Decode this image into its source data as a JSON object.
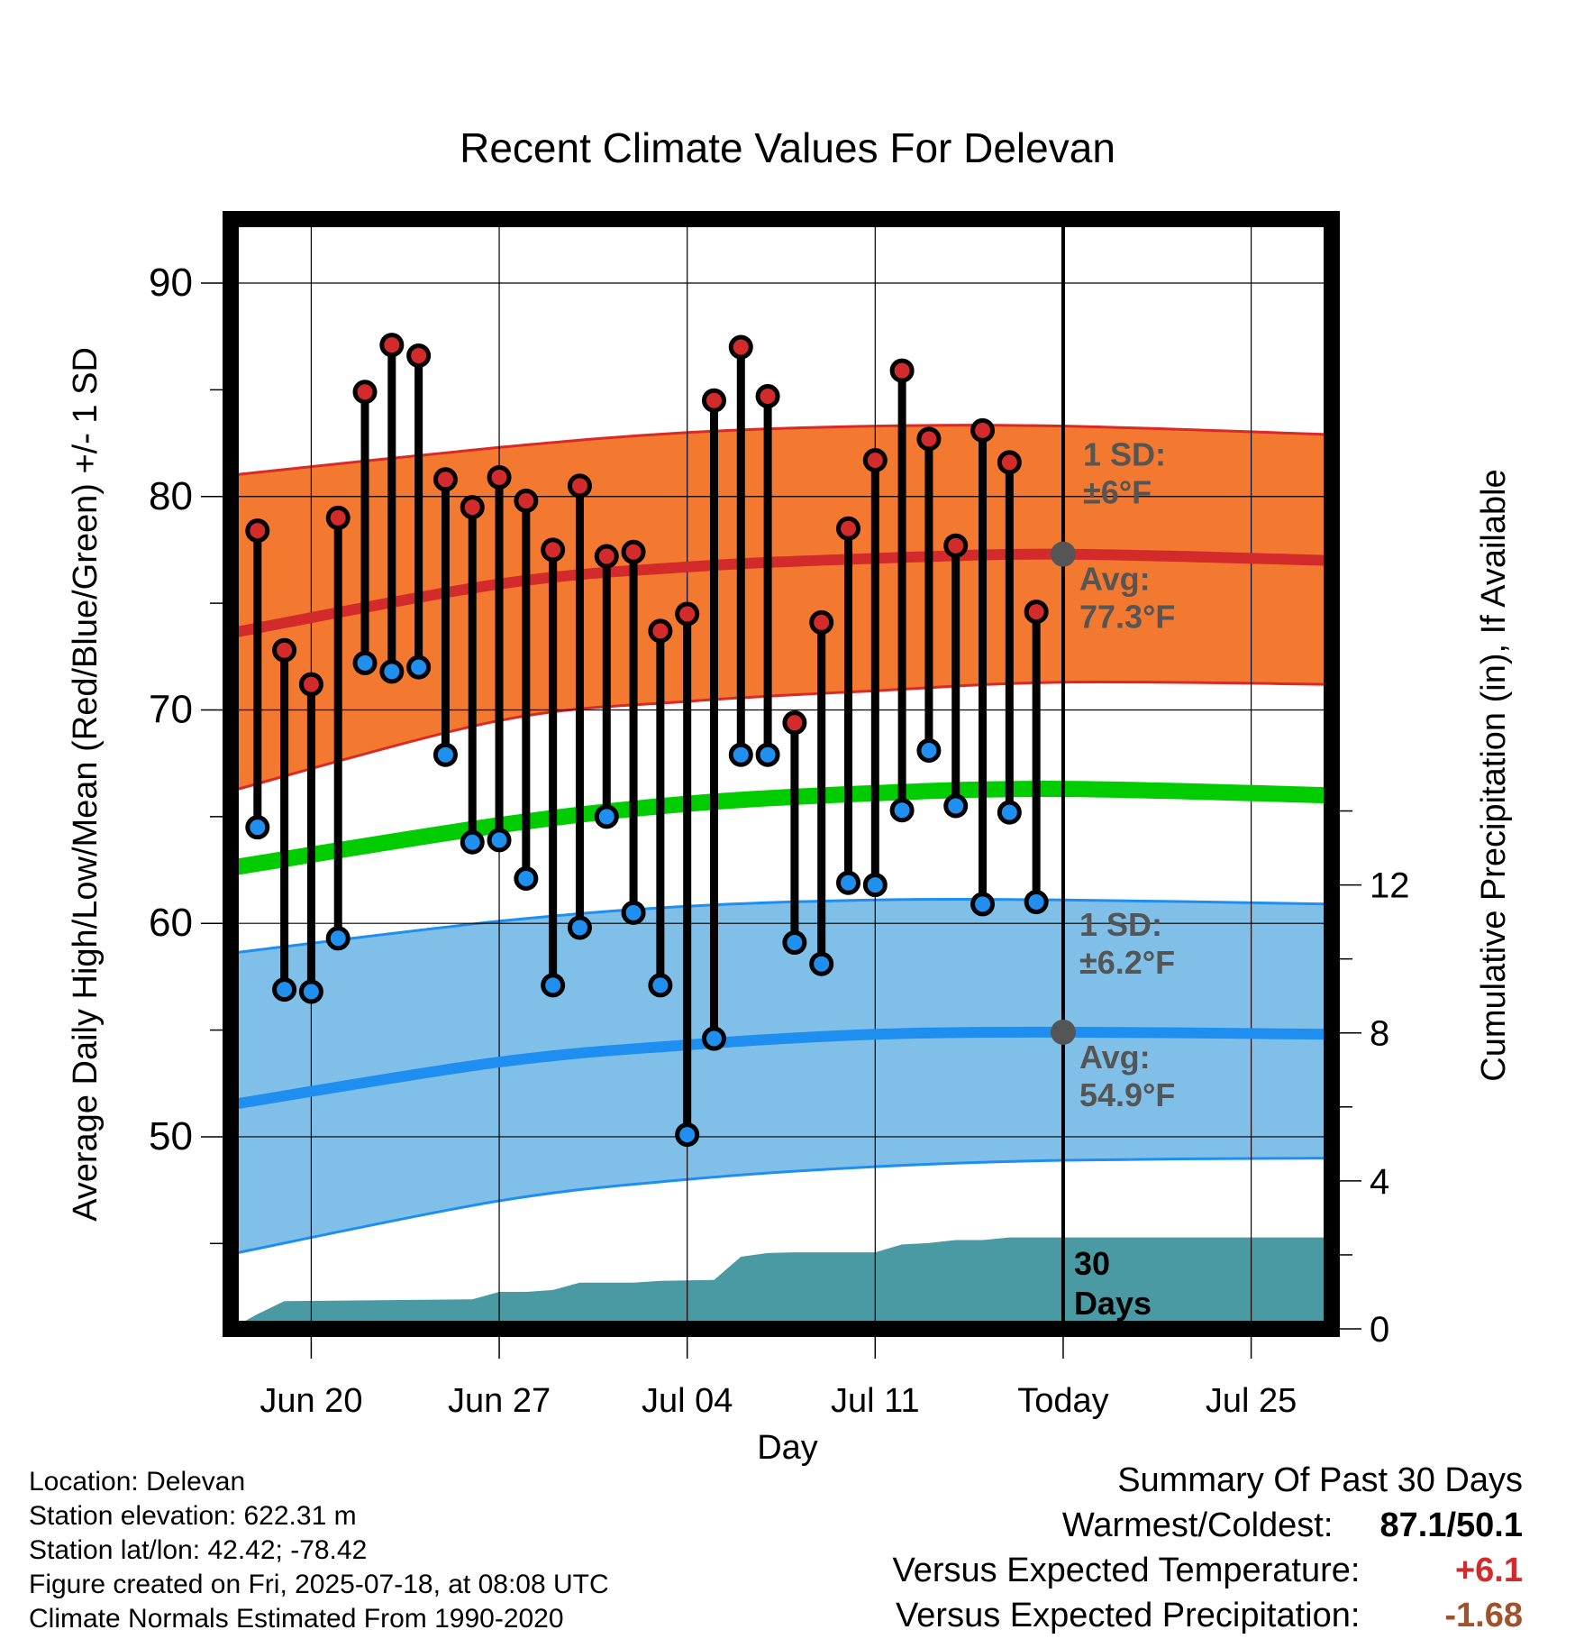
{
  "chart_data": {
    "type": "line",
    "title": "Recent Climate Values For Delevan",
    "xlabel": "Day",
    "ylabel": "Average Daily High/Low/Mean (Red/Blue/Green) +/- 1 SD",
    "y2label": "Cumulative Precipitation (in), If Available",
    "x_range_days": [
      "2025-06-17",
      "2025-07-28"
    ],
    "ylim": [
      41,
      93
    ],
    "y2lim": [
      0,
      30
    ],
    "yticks": [
      50,
      60,
      70,
      80,
      90
    ],
    "y2ticks": [
      0,
      4,
      8,
      12
    ],
    "xticks": [
      {
        "date": "2025-06-20",
        "label": "Jun 20"
      },
      {
        "date": "2025-06-27",
        "label": "Jun 27"
      },
      {
        "date": "2025-07-04",
        "label": "Jul 04"
      },
      {
        "date": "2025-07-11",
        "label": "Jul 11"
      },
      {
        "date": "2025-07-18",
        "label": "Today"
      },
      {
        "date": "2025-07-25",
        "label": "Jul 25"
      }
    ],
    "today": "2025-07-18",
    "grid": true,
    "colors": {
      "high_band": "#f37930",
      "high_band_edge": "#d92a26",
      "high_avg": "#d32b2b",
      "low_band": "#80c0e8",
      "low_band_edge": "#1e8ff0",
      "low_avg": "#1e8ff0",
      "mean": "#00cc00",
      "precip": "#4a9aa4",
      "high_dot": "#d32b2b",
      "low_dot": "#1f8ff0",
      "annot": "#555555"
    },
    "normal_dates": [
      "2025-06-17",
      "2025-06-27",
      "2025-07-04",
      "2025-07-11",
      "2025-07-18",
      "2025-07-28"
    ],
    "normal_high": [
      73.6,
      75.9,
      76.7,
      77.1,
      77.3,
      77.0
    ],
    "normal_high_upper": [
      81.0,
      82.3,
      83.0,
      83.3,
      83.3,
      82.9
    ],
    "normal_high_lower": [
      66.2,
      69.5,
      70.4,
      70.9,
      71.3,
      71.2
    ],
    "normal_low": [
      51.5,
      53.5,
      54.3,
      54.8,
      54.9,
      54.8
    ],
    "normal_low_upper": [
      58.6,
      60.1,
      60.8,
      61.1,
      61.1,
      60.9
    ],
    "normal_low_lower": [
      44.5,
      47.0,
      48.0,
      48.6,
      48.9,
      49.0
    ],
    "normal_mean": [
      62.6,
      64.6,
      65.6,
      66.1,
      66.3,
      66.0
    ],
    "observed": {
      "dates": [
        "2025-06-18",
        "2025-06-19",
        "2025-06-20",
        "2025-06-21",
        "2025-06-22",
        "2025-06-23",
        "2025-06-24",
        "2025-06-25",
        "2025-06-26",
        "2025-06-27",
        "2025-06-28",
        "2025-06-29",
        "2025-06-30",
        "2025-07-01",
        "2025-07-02",
        "2025-07-03",
        "2025-07-04",
        "2025-07-05",
        "2025-07-06",
        "2025-07-07",
        "2025-07-08",
        "2025-07-09",
        "2025-07-10",
        "2025-07-11",
        "2025-07-12",
        "2025-07-13",
        "2025-07-14",
        "2025-07-15",
        "2025-07-16",
        "2025-07-17"
      ],
      "high": [
        78.4,
        72.8,
        71.2,
        79.0,
        84.9,
        87.1,
        86.6,
        80.8,
        79.5,
        80.9,
        79.8,
        77.5,
        80.5,
        77.2,
        77.4,
        73.7,
        74.5,
        84.5,
        87.0,
        84.7,
        69.4,
        74.1,
        78.5,
        81.7,
        85.9,
        82.7,
        77.7,
        83.1,
        81.6,
        74.6
      ],
      "low": [
        64.5,
        56.9,
        56.8,
        59.3,
        72.2,
        71.8,
        72.0,
        67.9,
        63.8,
        63.9,
        62.1,
        57.1,
        59.8,
        65.0,
        60.5,
        57.1,
        50.1,
        54.6,
        67.9,
        67.9,
        59.1,
        58.1,
        61.9,
        61.8,
        65.3,
        68.1,
        65.5,
        60.9,
        65.2,
        61.0
      ]
    },
    "precip_dates": [
      "2025-06-17",
      "2025-06-18",
      "2025-06-19",
      "2025-06-26",
      "2025-06-27",
      "2025-06-28",
      "2025-06-29",
      "2025-06-30",
      "2025-07-02",
      "2025-07-03",
      "2025-07-05",
      "2025-07-06",
      "2025-07-07",
      "2025-07-08",
      "2025-07-11",
      "2025-07-12",
      "2025-07-13",
      "2025-07-14",
      "2025-07-15",
      "2025-07-16",
      "2025-07-28"
    ],
    "precip_cum": [
      0.0,
      0.4,
      0.75,
      0.8,
      1.0,
      1.0,
      1.05,
      1.25,
      1.25,
      1.3,
      1.32,
      1.95,
      2.05,
      2.07,
      2.07,
      2.28,
      2.32,
      2.4,
      2.4,
      2.47,
      2.47
    ],
    "annotations": {
      "high_sd_label": "1 SD:",
      "high_sd_value": "±6°F",
      "high_avg_label": "Avg:",
      "high_avg_value": "77.3°F",
      "low_sd_label": "1 SD:",
      "low_sd_value": "±6.2°F",
      "low_avg_label": "Avg:",
      "low_avg_value": "54.9°F",
      "period_line1": "30",
      "period_line2": "Days"
    }
  },
  "info": {
    "location": "Location: Delevan",
    "elevation": "Station elevation: 622.31 m",
    "latlon": "Station lat/lon: 42.42; -78.42",
    "created": "Figure created on Fri, 2025-07-18, at 08:08 UTC",
    "normals": "Climate Normals Estimated From 1990-2020"
  },
  "summary": {
    "title": "Summary Of Past 30 Days",
    "warmest_label": "Warmest/Coldest:",
    "warmest_value": "87.1/50.1",
    "temp_label": "Versus Expected Temperature:",
    "temp_value": "+6.1",
    "precip_label": "Versus Expected Precipitation:",
    "precip_value": "-1.68",
    "temp_color": "#d32b2b",
    "precip_color": "#a0522d"
  }
}
